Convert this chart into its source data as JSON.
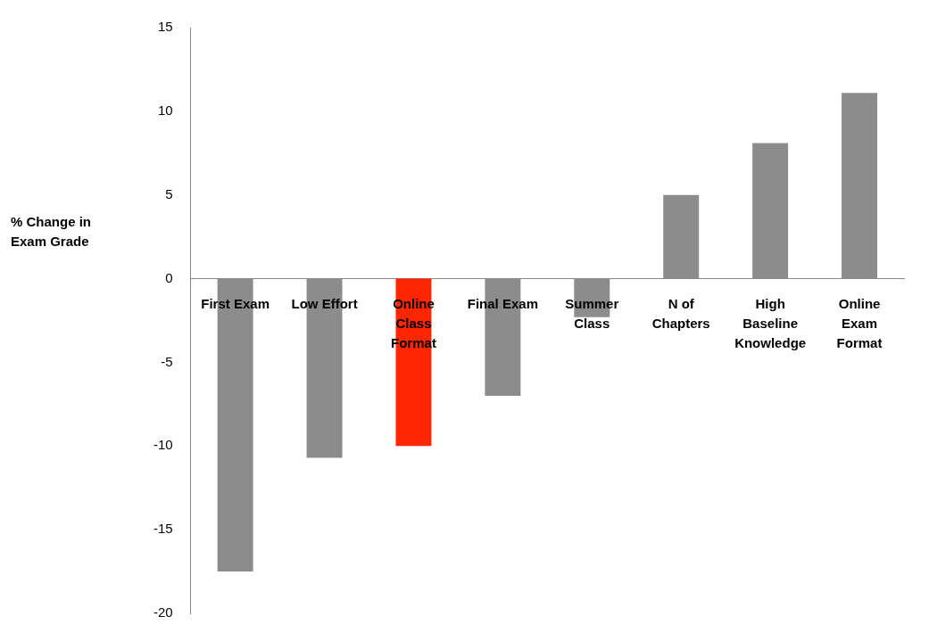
{
  "chart_data": {
    "type": "bar",
    "ylabel": "% Change in Exam Grade",
    "categories": [
      "First Exam",
      "Low Effort",
      "Online Class Format",
      "Final Exam",
      "Summer Class",
      "N of Chapters",
      "High Baseline Knowledge",
      "Online Exam Format"
    ],
    "values": [
      -17.5,
      -10.7,
      -10,
      -7,
      -2.3,
      5,
      8.1,
      11.1
    ],
    "colors": [
      "#8c8c8c",
      "#8c8c8c",
      "#ff2600",
      "#8c8c8c",
      "#8c8c8c",
      "#8c8c8c",
      "#8c8c8c",
      "#8c8c8c"
    ],
    "ylim": [
      -20,
      15
    ],
    "yticks": [
      -20,
      -15,
      -10,
      -5,
      0,
      5,
      10,
      15
    ],
    "grid": false,
    "legend": false
  }
}
